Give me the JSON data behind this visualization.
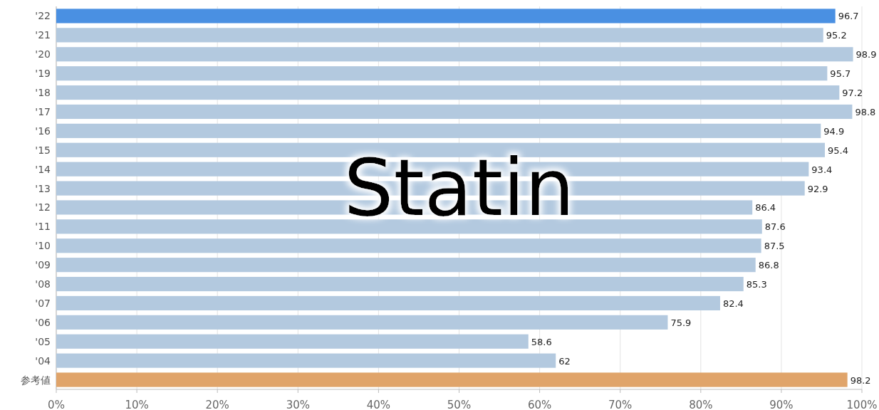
{
  "chart_data": {
    "type": "bar",
    "orientation": "horizontal",
    "title": "Statin",
    "categories": [
      "'22",
      "'21",
      "'20",
      "'19",
      "'18",
      "'17",
      "'16",
      "'15",
      "'14",
      "'13",
      "'12",
      "'11",
      "'10",
      "'09",
      "'08",
      "'07",
      "'06",
      "'05",
      "'04",
      "参考値"
    ],
    "values": [
      96.7,
      95.2,
      98.9,
      95.7,
      97.2,
      98.8,
      94.9,
      95.4,
      93.4,
      92.9,
      86.4,
      87.6,
      87.5,
      86.8,
      85.3,
      82.4,
      75.9,
      58.6,
      62,
      98.2
    ],
    "colors": [
      "#4a90e2",
      "#b3c9df",
      "#b3c9df",
      "#b3c9df",
      "#b3c9df",
      "#b3c9df",
      "#b3c9df",
      "#b3c9df",
      "#b3c9df",
      "#b3c9df",
      "#b3c9df",
      "#b3c9df",
      "#b3c9df",
      "#b3c9df",
      "#b3c9df",
      "#b3c9df",
      "#b3c9df",
      "#b3c9df",
      "#b3c9df",
      "#e0a46a"
    ],
    "xlim": [
      0,
      100
    ],
    "xticks": [
      {
        "value": 0,
        "label": "0%"
      },
      {
        "value": 10,
        "label": "10%"
      },
      {
        "value": 20,
        "label": "20%"
      },
      {
        "value": 30,
        "label": "30%"
      },
      {
        "value": 40,
        "label": "40%"
      },
      {
        "value": 50,
        "label": "50%"
      },
      {
        "value": 60,
        "label": "60%"
      },
      {
        "value": 70,
        "label": "70%"
      },
      {
        "value": 80,
        "label": "80%"
      },
      {
        "value": 90,
        "label": "90%"
      },
      {
        "value": 100,
        "label": "100%"
      }
    ],
    "grid": "x",
    "data_labels": true
  }
}
